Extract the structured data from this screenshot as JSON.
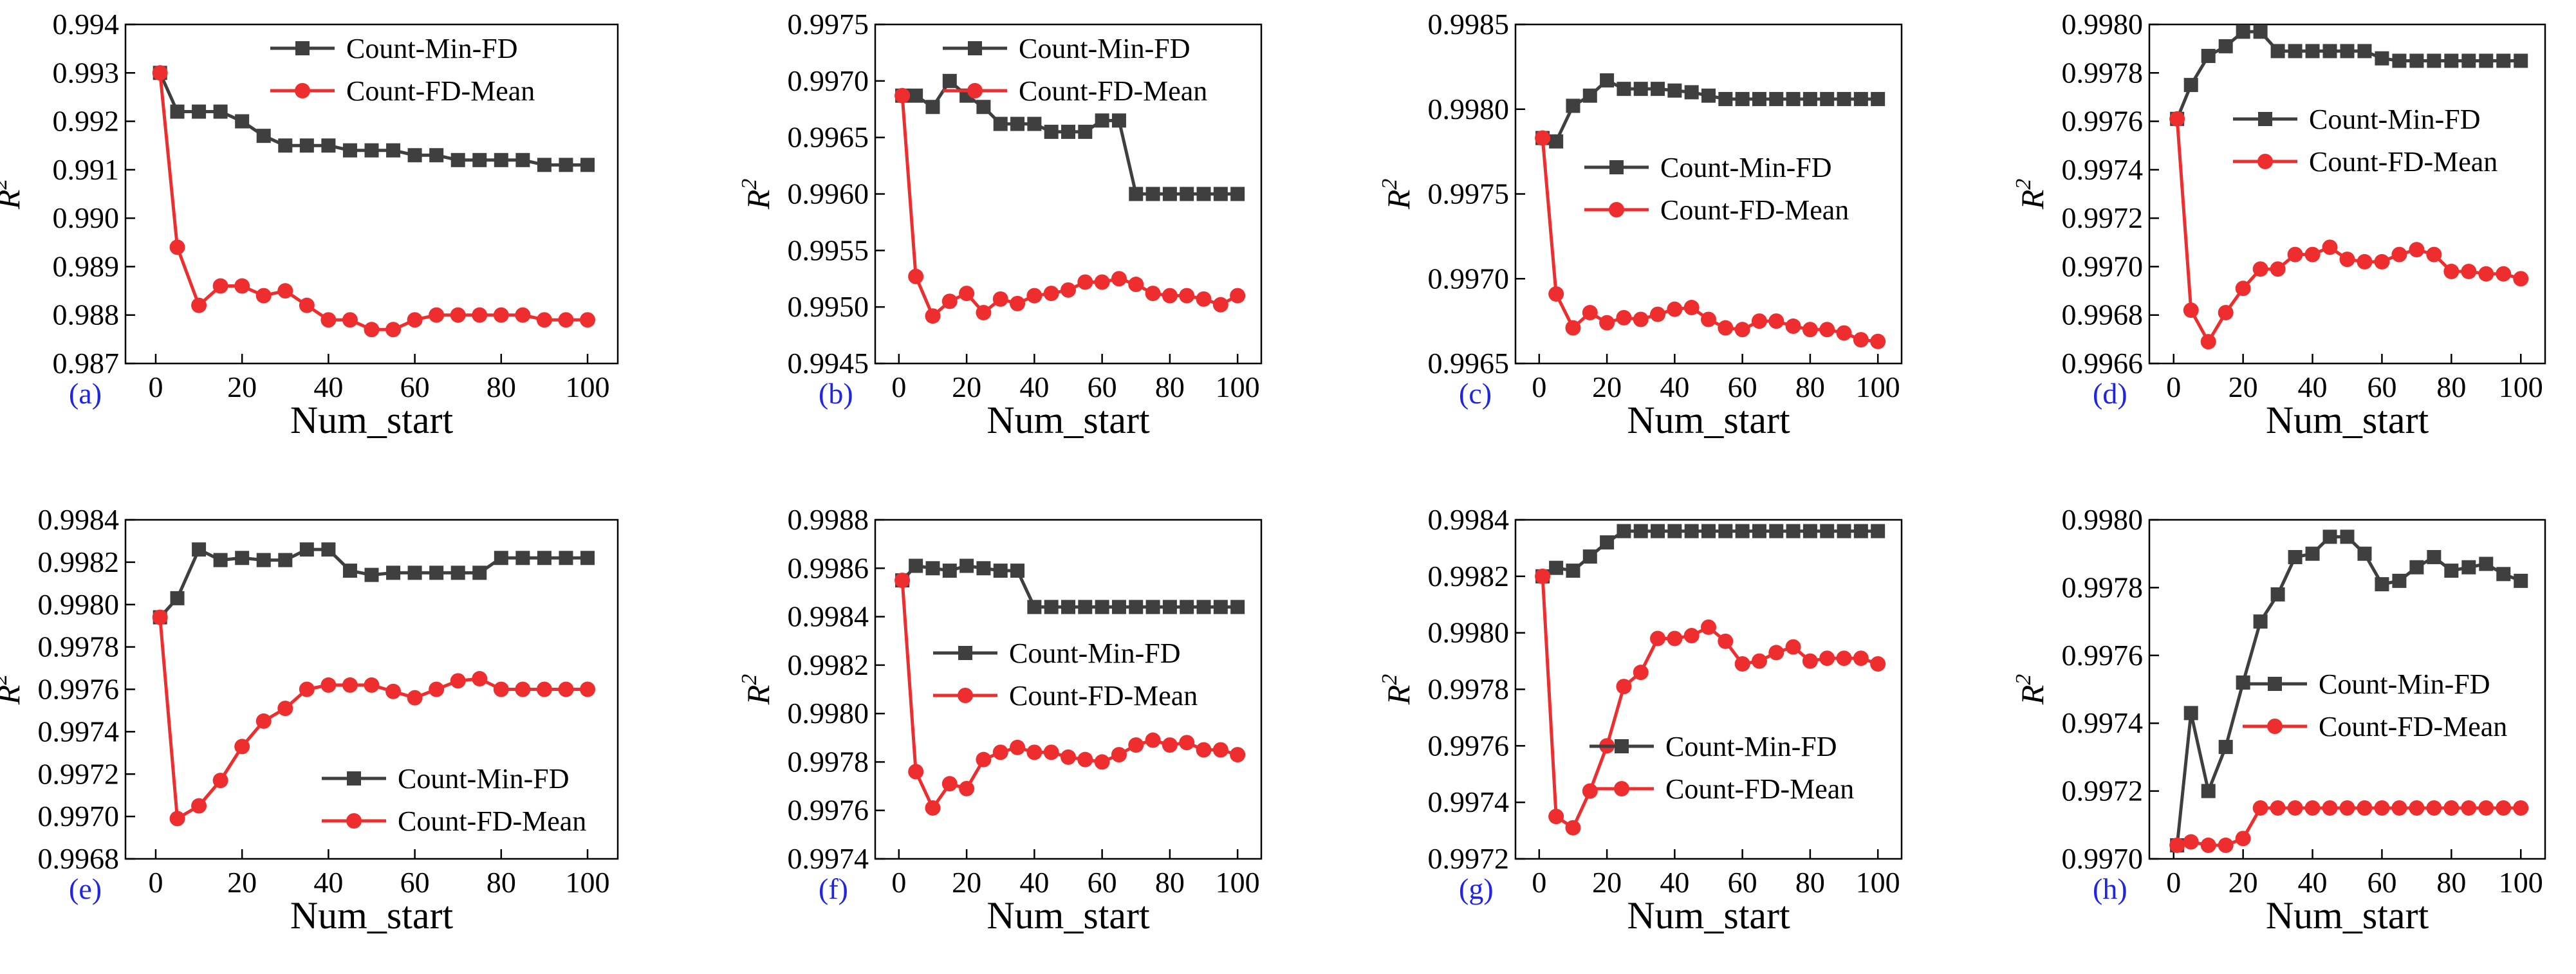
{
  "colors": {
    "series_a": "#3f3f3f",
    "series_b": "#ee2e2e",
    "panel_label": "#1f24e6",
    "axis": "#000000"
  },
  "series_names": [
    "Count-Min-FD",
    "Count-FD-Mean"
  ],
  "chart_data": [
    {
      "type": "line",
      "label": "(a)",
      "xlabel": "Num_start",
      "ylabel": "R2",
      "xlim": [
        -7,
        107
      ],
      "xticks": [
        0,
        20,
        40,
        60,
        80,
        100
      ],
      "ylim": [
        0.987,
        0.994
      ],
      "yticks": [
        "0.987",
        "0.988",
        "0.989",
        "0.990",
        "0.991",
        "0.992",
        "0.993",
        "0.994"
      ],
      "legend": "top-right",
      "x": [
        1,
        5,
        10,
        15,
        20,
        25,
        30,
        35,
        40,
        45,
        50,
        55,
        60,
        65,
        70,
        75,
        80,
        85,
        90,
        95,
        100
      ],
      "series": [
        {
          "name": "Count-Min-FD",
          "values": [
            0.993,
            0.9922,
            0.9922,
            0.9922,
            0.992,
            0.9917,
            0.9915,
            0.9915,
            0.9915,
            0.9914,
            0.9914,
            0.9914,
            0.9913,
            0.9913,
            0.9912,
            0.9912,
            0.9912,
            0.9912,
            0.9911,
            0.9911,
            0.9911
          ]
        },
        {
          "name": "Count-FD-Mean",
          "values": [
            0.993,
            0.9894,
            0.9882,
            0.9886,
            0.9886,
            0.9884,
            0.9885,
            0.9882,
            0.9879,
            0.9879,
            0.9877,
            0.9877,
            0.9879,
            0.988,
            0.988,
            0.988,
            0.988,
            0.988,
            0.9879,
            0.9879,
            0.9879
          ]
        }
      ]
    },
    {
      "type": "line",
      "label": "(b)",
      "xlabel": "Num_start",
      "ylabel": "R2",
      "xlim": [
        -7,
        107
      ],
      "xticks": [
        0,
        20,
        40,
        60,
        80,
        100
      ],
      "ylim": [
        0.9945,
        0.9975
      ],
      "yticks": [
        "0.9945",
        "0.9950",
        "0.9955",
        "0.9960",
        "0.9965",
        "0.9970",
        "0.9975"
      ],
      "legend": "top-right",
      "x": [
        1,
        5,
        10,
        15,
        20,
        25,
        30,
        35,
        40,
        45,
        50,
        55,
        60,
        65,
        70,
        75,
        80,
        85,
        90,
        95,
        100
      ],
      "series": [
        {
          "name": "Count-Min-FD",
          "values": [
            0.99687,
            0.99687,
            0.99677,
            0.997,
            0.99687,
            0.99677,
            0.99662,
            0.99662,
            0.99662,
            0.99655,
            0.99655,
            0.99655,
            0.99665,
            0.99665,
            0.996,
            0.996,
            0.996,
            0.996,
            0.996,
            0.996,
            0.996
          ]
        },
        {
          "name": "Count-FD-Mean",
          "values": [
            0.99687,
            0.99527,
            0.99492,
            0.99505,
            0.99512,
            0.99495,
            0.99507,
            0.99503,
            0.9951,
            0.99512,
            0.99515,
            0.99522,
            0.99522,
            0.99525,
            0.9952,
            0.99512,
            0.9951,
            0.9951,
            0.99507,
            0.99502,
            0.9951
          ]
        }
      ]
    },
    {
      "type": "line",
      "label": "(c)",
      "xlabel": "Num_start",
      "ylabel": "R2",
      "xlim": [
        -7,
        107
      ],
      "xticks": [
        0,
        20,
        40,
        60,
        80,
        100
      ],
      "ylim": [
        0.9965,
        0.9985
      ],
      "yticks": [
        "0.9965",
        "0.9970",
        "0.9975",
        "0.9980",
        "0.9985"
      ],
      "legend": "center-right",
      "x": [
        1,
        5,
        10,
        15,
        20,
        25,
        30,
        35,
        40,
        45,
        50,
        55,
        60,
        65,
        70,
        75,
        80,
        85,
        90,
        95,
        100
      ],
      "series": [
        {
          "name": "Count-Min-FD",
          "values": [
            0.99783,
            0.99781,
            0.99802,
            0.99808,
            0.99817,
            0.99812,
            0.99812,
            0.99812,
            0.99811,
            0.9981,
            0.99808,
            0.99806,
            0.99806,
            0.99806,
            0.99806,
            0.99806,
            0.99806,
            0.99806,
            0.99806,
            0.99806,
            0.99806
          ]
        },
        {
          "name": "Count-FD-Mean",
          "values": [
            0.99783,
            0.99691,
            0.99671,
            0.9968,
            0.99674,
            0.99677,
            0.99676,
            0.99679,
            0.99682,
            0.99683,
            0.99676,
            0.99671,
            0.9967,
            0.99675,
            0.99675,
            0.99672,
            0.9967,
            0.9967,
            0.99668,
            0.99664,
            0.99663
          ]
        }
      ]
    },
    {
      "type": "line",
      "label": "(d)",
      "xlabel": "Num_start",
      "ylabel": "R2",
      "xlim": [
        -7,
        107
      ],
      "xticks": [
        0,
        20,
        40,
        60,
        80,
        100
      ],
      "ylim": [
        0.9966,
        0.998
      ],
      "yticks": [
        "0.9966",
        "0.9968",
        "0.9970",
        "0.9972",
        "0.9974",
        "0.9976",
        "0.9978",
        "0.9980"
      ],
      "legend": "center-right",
      "x": [
        1,
        5,
        10,
        15,
        20,
        25,
        30,
        35,
        40,
        45,
        50,
        55,
        60,
        65,
        70,
        75,
        80,
        85,
        90,
        95,
        100
      ],
      "series": [
        {
          "name": "Count-Min-FD",
          "values": [
            0.99761,
            0.99775,
            0.99787,
            0.99791,
            0.99797,
            0.99797,
            0.99789,
            0.99789,
            0.99789,
            0.99789,
            0.99789,
            0.99789,
            0.99786,
            0.99785,
            0.99785,
            0.99785,
            0.99785,
            0.99785,
            0.99785,
            0.99785,
            0.99785
          ]
        },
        {
          "name": "Count-FD-Mean",
          "values": [
            0.99761,
            0.99682,
            0.99669,
            0.99681,
            0.99691,
            0.99699,
            0.99699,
            0.99705,
            0.99705,
            0.99708,
            0.99703,
            0.99702,
            0.99702,
            0.99705,
            0.99707,
            0.99705,
            0.99698,
            0.99698,
            0.99697,
            0.99697,
            0.99695
          ]
        }
      ]
    },
    {
      "type": "line",
      "label": "(e)",
      "xlabel": "Num_start",
      "ylabel": "R2",
      "xlim": [
        -7,
        107
      ],
      "xticks": [
        0,
        20,
        40,
        60,
        80,
        100
      ],
      "ylim": [
        0.9968,
        0.9984
      ],
      "yticks": [
        "0.9968",
        "0.9970",
        "0.9972",
        "0.9974",
        "0.9976",
        "0.9978",
        "0.9980",
        "0.9982",
        "0.9984"
      ],
      "legend": "bottom-right",
      "x": [
        1,
        5,
        10,
        15,
        20,
        25,
        30,
        35,
        40,
        45,
        50,
        55,
        60,
        65,
        70,
        75,
        80,
        85,
        90,
        95,
        100
      ],
      "series": [
        {
          "name": "Count-Min-FD",
          "values": [
            0.99794,
            0.99803,
            0.99826,
            0.99821,
            0.99822,
            0.99821,
            0.99821,
            0.99826,
            0.99826,
            0.99816,
            0.99814,
            0.99815,
            0.99815,
            0.99815,
            0.99815,
            0.99815,
            0.99822,
            0.99822,
            0.99822,
            0.99822,
            0.99822
          ]
        },
        {
          "name": "Count-FD-Mean",
          "values": [
            0.99794,
            0.99699,
            0.99705,
            0.99717,
            0.99733,
            0.99745,
            0.99751,
            0.9976,
            0.99762,
            0.99762,
            0.99762,
            0.99759,
            0.99756,
            0.9976,
            0.99764,
            0.99765,
            0.9976,
            0.9976,
            0.9976,
            0.9976,
            0.9976
          ]
        }
      ]
    },
    {
      "type": "line",
      "label": "(f)",
      "xlabel": "Num_start",
      "ylabel": "R2",
      "xlim": [
        -7,
        107
      ],
      "xticks": [
        0,
        20,
        40,
        60,
        80,
        100
      ],
      "ylim": [
        0.9974,
        0.9988
      ],
      "yticks": [
        "0.9974",
        "0.9976",
        "0.9978",
        "0.9980",
        "0.9982",
        "0.9984",
        "0.9986",
        "0.9988"
      ],
      "legend": "center-right",
      "x": [
        1,
        5,
        10,
        15,
        20,
        25,
        30,
        35,
        40,
        45,
        50,
        55,
        60,
        65,
        70,
        75,
        80,
        85,
        90,
        95,
        100
      ],
      "series": [
        {
          "name": "Count-Min-FD",
          "values": [
            0.99855,
            0.99861,
            0.9986,
            0.99859,
            0.99861,
            0.9986,
            0.99859,
            0.99859,
            0.99844,
            0.99844,
            0.99844,
            0.99844,
            0.99844,
            0.99844,
            0.99844,
            0.99844,
            0.99844,
            0.99844,
            0.99844,
            0.99844,
            0.99844
          ]
        },
        {
          "name": "Count-FD-Mean",
          "values": [
            0.99855,
            0.99776,
            0.99761,
            0.99771,
            0.99769,
            0.99781,
            0.99784,
            0.99786,
            0.99784,
            0.99784,
            0.99782,
            0.99781,
            0.9978,
            0.99783,
            0.99787,
            0.99789,
            0.99787,
            0.99788,
            0.99785,
            0.99785,
            0.99783
          ]
        }
      ]
    },
    {
      "type": "line",
      "label": "(g)",
      "xlabel": "Num_start",
      "ylabel": "R2",
      "xlim": [
        -7,
        107
      ],
      "xticks": [
        0,
        20,
        40,
        60,
        80,
        100
      ],
      "ylim": [
        0.9972,
        0.9984
      ],
      "yticks": [
        "0.9972",
        "0.9974",
        "0.9976",
        "0.9978",
        "0.9980",
        "0.9982",
        "0.9984"
      ],
      "legend": "bottom-right",
      "x": [
        1,
        5,
        10,
        15,
        20,
        25,
        30,
        35,
        40,
        45,
        50,
        55,
        60,
        65,
        70,
        75,
        80,
        85,
        90,
        95,
        100
      ],
      "series": [
        {
          "name": "Count-Min-FD",
          "values": [
            0.9982,
            0.99823,
            0.99822,
            0.99827,
            0.99832,
            0.99836,
            0.99836,
            0.99836,
            0.99836,
            0.99836,
            0.99836,
            0.99836,
            0.99836,
            0.99836,
            0.99836,
            0.99836,
            0.99836,
            0.99836,
            0.99836,
            0.99836,
            0.99836
          ]
        },
        {
          "name": "Count-FD-Mean",
          "values": [
            0.9982,
            0.99735,
            0.99731,
            0.99744,
            0.9976,
            0.99781,
            0.99786,
            0.99798,
            0.99798,
            0.99799,
            0.99802,
            0.99797,
            0.99789,
            0.9979,
            0.99793,
            0.99795,
            0.9979,
            0.99791,
            0.99791,
            0.99791,
            0.99789
          ]
        }
      ]
    },
    {
      "type": "line",
      "label": "(h)",
      "xlabel": "Num_start",
      "ylabel": "R2",
      "xlim": [
        -7,
        107
      ],
      "xticks": [
        0,
        20,
        40,
        60,
        80,
        100
      ],
      "ylim": [
        0.997,
        0.998
      ],
      "yticks": [
        "0.9970",
        "0.9972",
        "0.9974",
        "0.9976",
        "0.9978",
        "0.9980"
      ],
      "legend": "center-right",
      "x": [
        1,
        5,
        10,
        15,
        20,
        25,
        30,
        35,
        40,
        45,
        50,
        55,
        60,
        65,
        70,
        75,
        80,
        85,
        90,
        95,
        100
      ],
      "series": [
        {
          "name": "Count-Min-FD",
          "values": [
            0.99704,
            0.99743,
            0.9972,
            0.99733,
            0.99752,
            0.9977,
            0.99778,
            0.99789,
            0.9979,
            0.99795,
            0.99795,
            0.9979,
            0.99781,
            0.99782,
            0.99786,
            0.99789,
            0.99785,
            0.99786,
            0.99787,
            0.99784,
            0.99782
          ]
        },
        {
          "name": "Count-FD-Mean",
          "values": [
            0.99704,
            0.99705,
            0.99704,
            0.99704,
            0.99706,
            0.99715,
            0.99715,
            0.99715,
            0.99715,
            0.99715,
            0.99715,
            0.99715,
            0.99715,
            0.99715,
            0.99715,
            0.99715,
            0.99715,
            0.99715,
            0.99715,
            0.99715,
            0.99715
          ]
        }
      ]
    }
  ]
}
